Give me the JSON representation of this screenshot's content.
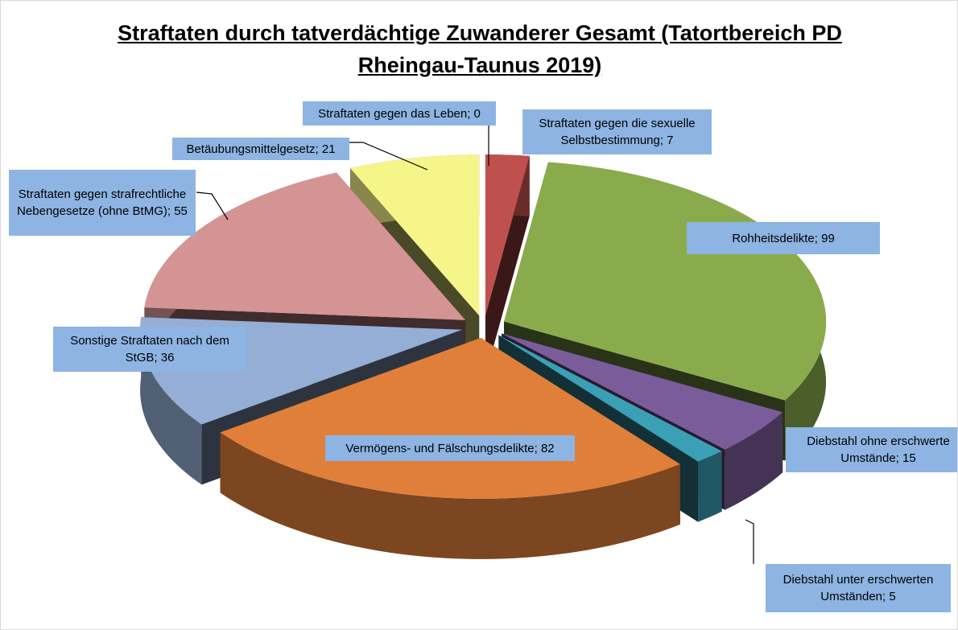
{
  "chart_data": {
    "type": "pie3d",
    "title": "Straftaten durch tatverdächtige Zuwanderer Gesamt (Tatortbereich PD Rheingau-Taunus 2019)",
    "values": [
      0,
      7,
      99,
      15,
      5,
      82,
      36,
      55,
      21
    ],
    "value_labels": [
      "Straftaten gegen das Leben; 0",
      "Straftaten gegen die sexuelle Selbstbestimmung; 7",
      "Rohheitsdelikte; 99",
      "Diebstahl ohne erschwerte Umstände; 15",
      "Diebstahl unter erschwerten Umständen; 5",
      "Vermögens- und Fälschungsdelikte; 82",
      "Sonstige Straftaten nach dem StGB; 36",
      "Straftaten gegen strafrechtliche Nebengesetze (ohne BtMG); 55",
      "Betäubungsmittelgesetz; 21"
    ],
    "colors": [
      "#4f81bd",
      "#c0504d",
      "#8aab4b",
      "#7b5c9a",
      "#3b9fb5",
      "#e07f3a",
      "#95aed6",
      "#d49494",
      "#f5f58a"
    ]
  }
}
